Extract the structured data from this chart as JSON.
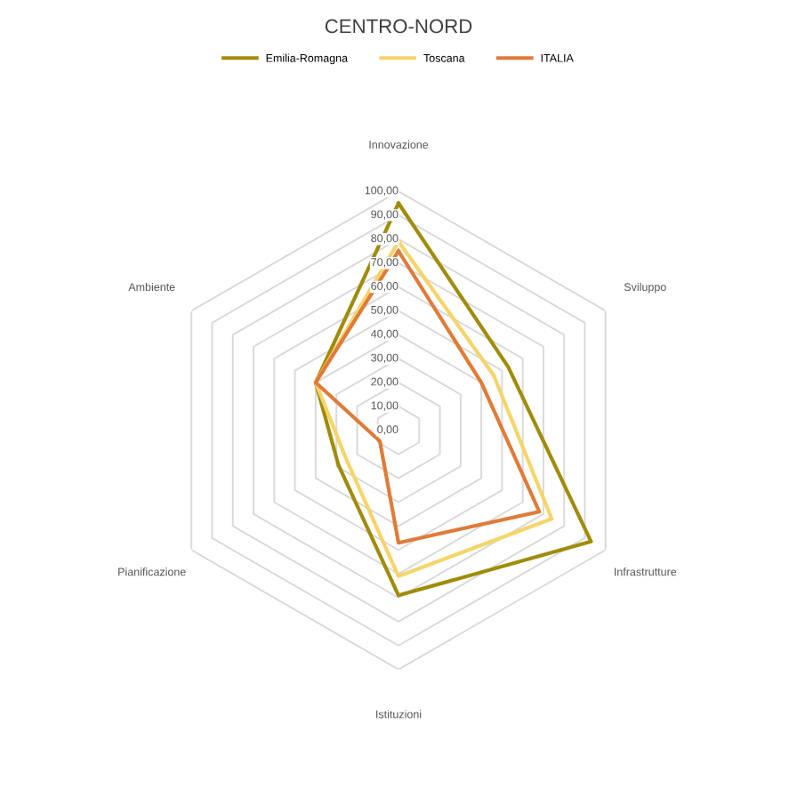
{
  "chart_data": {
    "type": "radar",
    "title": "CENTRO-NORD",
    "categories": [
      "Innovazione",
      "Sviluppo",
      "Infrastrutture",
      "Istituzioni",
      "Pianificazione",
      "Ambiente"
    ],
    "series": [
      {
        "name": "Emilia-Romagna",
        "color": "#a08c0a",
        "values": [
          95,
          53,
          93,
          69,
          29,
          40
        ]
      },
      {
        "name": "Toscana",
        "color": "#f5d46a",
        "values": [
          79,
          46,
          74,
          61,
          25,
          40
        ]
      },
      {
        "name": "ITALIA",
        "color": "#e07b39",
        "values": [
          75,
          40,
          68,
          47,
          9,
          40
        ]
      }
    ],
    "ylim": [
      0,
      100
    ],
    "yticks": [
      {
        "value": 0,
        "label": "0,00"
      },
      {
        "value": 10,
        "label": "10,00"
      },
      {
        "value": 20,
        "label": "20,00"
      },
      {
        "value": 30,
        "label": "30,00"
      },
      {
        "value": 40,
        "label": "40,00"
      },
      {
        "value": 50,
        "label": "50,00"
      },
      {
        "value": 60,
        "label": "60,00"
      },
      {
        "value": 70,
        "label": "70,00"
      },
      {
        "value": 80,
        "label": "80,00"
      },
      {
        "value": 90,
        "label": "90,00"
      },
      {
        "value": 100,
        "label": "100,00"
      }
    ],
    "grid": true,
    "legend": "top",
    "marker": "none",
    "line_style": "solid"
  }
}
